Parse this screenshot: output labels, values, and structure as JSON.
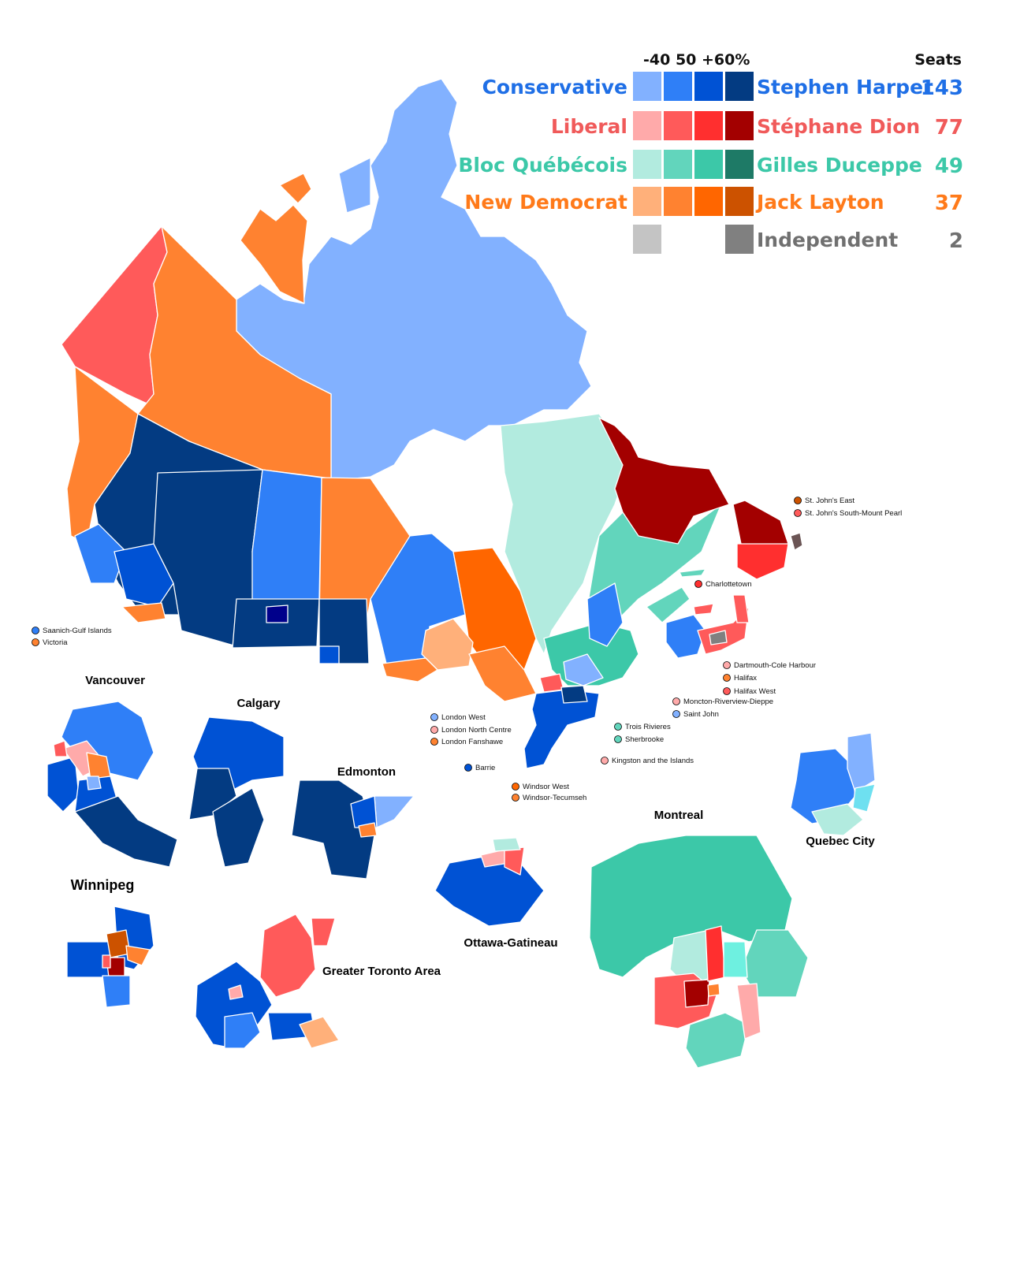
{
  "legend": {
    "scale_header": "-40   50   +60%",
    "seats_header": "Seats",
    "parties": [
      {
        "party": "Conservative",
        "leader": "Stephen Harper",
        "seats": "143",
        "label_color": "#1f6fe6",
        "swatches": [
          "#82b1ff",
          "#2f7ff7",
          "#0052d4",
          "#033b82"
        ]
      },
      {
        "party": "Liberal",
        "leader": "Stéphane Dion",
        "seats": "77",
        "label_color": "#f05a5a",
        "swatches": [
          "#ffaaaa",
          "#ff5a5a",
          "#ff2f2f",
          "#a30000"
        ]
      },
      {
        "party": "Bloc Québécois",
        "leader": "Gilles Duceppe",
        "seats": "49",
        "label_color": "#3cc8a8",
        "swatches": [
          "#b2ebdf",
          "#62d5bc",
          "#3cc8a8",
          "#1e7a66"
        ]
      },
      {
        "party": "New Democrat",
        "leader": "Jack Layton",
        "seats": "37",
        "label_color": "#ff7a1a",
        "swatches": [
          "#ffb07a",
          "#ff8230",
          "#ff6600",
          "#cc5200"
        ]
      },
      {
        "party": "",
        "leader": "Independent",
        "seats": "2",
        "label_color": "#707070",
        "swatches": [
          "#c4c4c4",
          null,
          null,
          "#808080"
        ]
      }
    ]
  },
  "riding_labels": [
    {
      "text": "St. John's East",
      "color": "#cc5200"
    },
    {
      "text": "St. John's South-Mount Pearl",
      "color": "#ff5a5a"
    },
    {
      "text": "Charlottetown",
      "color": "#ff2f2f"
    },
    {
      "text": "Saanich-Gulf Islands",
      "color": "#2f7ff7"
    },
    {
      "text": "Victoria",
      "color": "#ff8230"
    },
    {
      "text": "Dartmouth-Cole Harbour",
      "color": "#ffaaaa"
    },
    {
      "text": "Halifax",
      "color": "#ff8230"
    },
    {
      "text": "Halifax West",
      "color": "#ff5a5a"
    },
    {
      "text": "Moncton-Riverview-Dieppe",
      "color": "#ffaaaa"
    },
    {
      "text": "Saint John",
      "color": "#82b1ff"
    },
    {
      "text": "London West",
      "color": "#82b1ff"
    },
    {
      "text": "London North Centre",
      "color": "#ffaaaa"
    },
    {
      "text": "London Fanshawe",
      "color": "#ff8230"
    },
    {
      "text": "Trois Rivieres",
      "color": "#62d5bc"
    },
    {
      "text": "Sherbrooke",
      "color": "#62d5bc"
    },
    {
      "text": "Barrie",
      "color": "#0052d4"
    },
    {
      "text": "Kingston and the Islands",
      "color": "#ffaaaa"
    },
    {
      "text": "Windsor West",
      "color": "#ff6600"
    },
    {
      "text": "Windsor-Tecumseh",
      "color": "#ff8230"
    }
  ],
  "insets": {
    "vancouver": "Vancouver",
    "calgary": "Calgary",
    "edmonton": "Edmonton",
    "winnipeg": "Winnipeg",
    "gta": "Greater Toronto Area",
    "ottawa": "Ottawa-Gatineau",
    "montreal": "Montreal",
    "quebec_city": "Quebec City"
  }
}
